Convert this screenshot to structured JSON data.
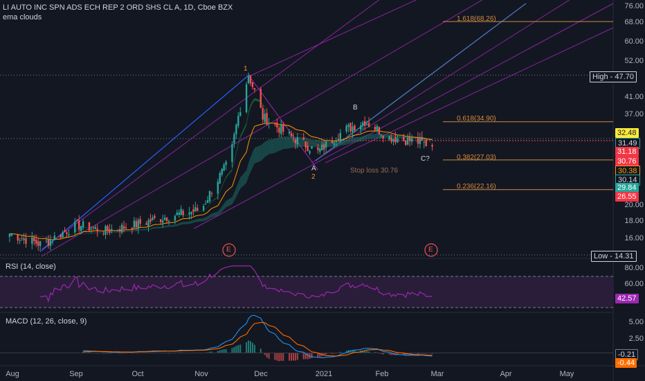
{
  "header": {
    "symbol_line": "LI AUTO INC SPN ADS ECH REP 2 ORD SHS CL A, 1D, Cboe BZX",
    "indicator": "ema clouds"
  },
  "panes": {
    "rsi_label": "RSI (14, close)",
    "macd_label": "MACD (12, 26, close, 9)"
  },
  "price_axis": [
    "76.00",
    "68.00",
    "52.00",
    "47.70",
    "41.00",
    "37.00",
    "32.48",
    "31.49",
    "31.18",
    "30.76",
    "30.38",
    "30.14",
    "29.84",
    "26.55",
    "20.00",
    "18.00",
    "16.00",
    "14.31"
  ],
  "price_ticks_plain": [
    "76.00",
    "68.00",
    "60.00",
    "52.00",
    "41.00",
    "37.00",
    "20.00",
    "18.00",
    "16.00"
  ],
  "price_tags": {
    "high": {
      "label": "High",
      "value": "47.70"
    },
    "low": {
      "label": "Low",
      "value": "14.31"
    },
    "v1": "32.48",
    "v2": "31.49",
    "v3": "31.18",
    "v4": "30.76",
    "v5": "30.38",
    "v6": "30.14",
    "v7": "29.84",
    "v8": "26.55"
  },
  "rsi_axis": {
    "ticks": [
      "80.00",
      "60.00"
    ],
    "current": "42.57"
  },
  "macd_axis": {
    "ticks": [
      "5.00",
      "2.50"
    ],
    "v1": "-0.21",
    "v2": "-0.44"
  },
  "x_axis": [
    "Aug",
    "Sep",
    "Oct",
    "Nov",
    "Dec",
    "2021",
    "Feb",
    "Mar",
    "Apr",
    "May"
  ],
  "annotations": {
    "fib_1618": "1.618(68.26)",
    "fib_0618": "0.618(34.90)",
    "fib_0382": "0.382(27.03)",
    "fib_0236": "0.236(22.16)",
    "stop_loss": "Stop loss 30.76",
    "wave_1": "1",
    "wave_2": "2",
    "wave_a": "A",
    "wave_b": "B",
    "wave_c": "C?",
    "earnings_1": "E",
    "earnings_2": "E"
  },
  "colors": {
    "bg": "#131722",
    "up": "#26a69a",
    "down": "#ef5350",
    "fib": "#d38b3f",
    "channel": "#9c27b0",
    "trend": "#2962ff",
    "rsi": "#9c27b0",
    "macd": "#2196f3",
    "signal": "#ff6d00"
  },
  "chart_data": {
    "type": "candlestick",
    "price": {
      "dates": [
        "2020-07-30",
        "2020-08-15",
        "2020-09-01",
        "2020-09-15",
        "2020-10-01",
        "2020-10-15",
        "2020-11-01",
        "2020-11-15",
        "2020-11-24",
        "2020-12-01",
        "2020-12-15",
        "2020-12-28",
        "2021-01-10",
        "2021-01-20",
        "2021-02-01",
        "2021-02-15",
        "2021-02-22"
      ],
      "close": [
        16.5,
        15.3,
        17.5,
        16.8,
        17.6,
        18.5,
        19.4,
        27.0,
        47.7,
        36.0,
        31.5,
        28.5,
        33.0,
        35.0,
        31.5,
        30.5,
        29.84
      ],
      "high": 47.7,
      "low": 14.31,
      "ylim": [
        14,
        80
      ],
      "scale": "log"
    },
    "fibonacci": [
      {
        "level": 1.618,
        "value": 68.26
      },
      {
        "level": 0.618,
        "value": 34.9
      },
      {
        "level": 0.382,
        "value": 27.03
      },
      {
        "level": 0.236,
        "value": 22.16
      }
    ],
    "stop_loss": 30.76,
    "rsi": {
      "current": 42.57,
      "overbought": 70,
      "oversold": 30,
      "peak": 87,
      "ylim": [
        20,
        95
      ]
    },
    "macd": {
      "macd_last": -0.21,
      "signal_last": -0.44,
      "peak": 5.5,
      "ylim": [
        -2,
        6.5
      ]
    }
  }
}
